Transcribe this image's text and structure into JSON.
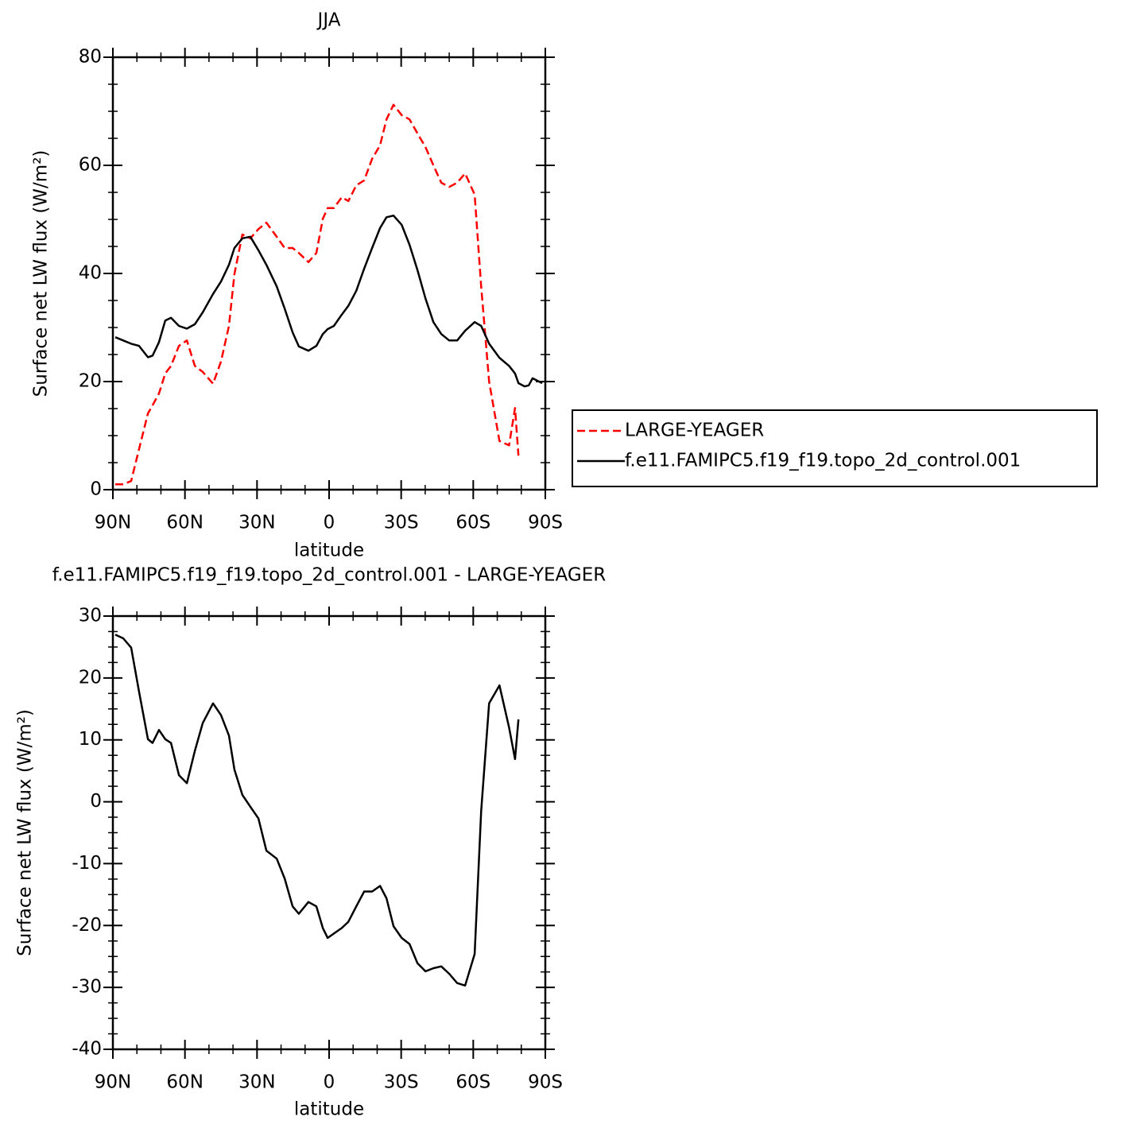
{
  "chart_data": [
    {
      "type": "line",
      "title": "JJA",
      "xlabel": "latitude",
      "ylabel": "Surface net LW flux (W/m²)",
      "x": [
        89.0,
        85.7,
        82.4,
        79.1,
        75.4,
        73.5,
        70.8,
        68.2,
        65.8,
        62.5,
        59.2,
        55.9,
        52.6,
        48.3,
        45.0,
        41.7,
        39.4,
        36.1,
        32.8,
        29.4,
        26.1,
        21.8,
        18.5,
        15.2,
        12.6,
        8.6,
        5.3,
        2.6,
        0.6,
        -2.0,
        -5.3,
        -8.0,
        -11.3,
        -14.6,
        -17.9,
        -21.2,
        -23.9,
        -26.8,
        -30.2,
        -33.5,
        -36.8,
        -40.1,
        -43.4,
        -46.7,
        -50.0,
        -53.3,
        -56.6,
        -60.6,
        -63.3,
        -66.6,
        -70.9,
        -74.9,
        -77.4,
        -78.8,
        -81.4,
        -83.1,
        -84.7,
        -88.7
      ],
      "series": [
        {
          "name": "LARGE-YEAGER",
          "color": "#ff0000",
          "dashed": true,
          "values": [
            1.0,
            1.0,
            1.6,
            7.5,
            14.1,
            15.6,
            17.8,
            21.5,
            22.9,
            26.6,
            27.6,
            22.9,
            21.8,
            19.6,
            23.7,
            30.3,
            39.9,
            47.2,
            46.5,
            48.2,
            49.4,
            46.8,
            44.7,
            44.7,
            43.8,
            42.1,
            43.8,
            50.1,
            52.1,
            52.1,
            54.1,
            53.4,
            56.3,
            57.2,
            61.2,
            63.7,
            68.5,
            71.2,
            69.3,
            68.5,
            65.9,
            63.4,
            60.0,
            56.8,
            56.0,
            56.8,
            58.5,
            54.6,
            37.6,
            20.0,
            9.0,
            8.2,
            15.1,
            6.3,
            null,
            null,
            null,
            null
          ]
        },
        {
          "name": "f.e11.FAMIPC5.f19_f19.topo_2d_control.001",
          "color": "#000000",
          "dashed": false,
          "values": [
            28.2,
            27.6,
            27.0,
            26.6,
            24.5,
            24.8,
            27.3,
            31.3,
            31.8,
            30.3,
            29.8,
            30.6,
            32.8,
            36.2,
            38.5,
            41.6,
            44.7,
            46.5,
            46.8,
            44.3,
            41.6,
            37.6,
            33.5,
            29.1,
            26.5,
            25.7,
            26.6,
            28.8,
            29.7,
            30.3,
            32.4,
            34.0,
            36.8,
            40.9,
            44.7,
            48.4,
            50.4,
            50.7,
            49.0,
            45.3,
            40.6,
            35.4,
            31.0,
            28.8,
            27.6,
            27.6,
            29.4,
            31.0,
            30.3,
            27.0,
            24.4,
            22.9,
            21.5,
            19.7,
            19.1,
            19.3,
            20.6,
            19.7
          ]
        }
      ],
      "xlim": [
        90,
        -90
      ],
      "xticks": [
        {
          "value": 90,
          "label": "90N"
        },
        {
          "value": 60,
          "label": "60N"
        },
        {
          "value": 30,
          "label": "30N"
        },
        0,
        {
          "value": -30,
          "label": "30S"
        },
        {
          "value": -60,
          "label": "60S"
        },
        {
          "value": -90,
          "label": "90S"
        }
      ],
      "ylim": [
        0,
        80
      ],
      "yticks": [
        0,
        20,
        40,
        60,
        80
      ],
      "legend": "right"
    },
    {
      "type": "line",
      "title": "f.e11.FAMIPC5.f19_f19.topo_2d_control.001 - LARGE-YEAGER",
      "xlabel": "latitude",
      "ylabel": "Surface net LW flux (W/m²)",
      "x": [
        89.0,
        85.7,
        82.4,
        79.1,
        75.4,
        73.5,
        70.8,
        68.2,
        65.8,
        62.5,
        59.2,
        55.9,
        52.6,
        48.3,
        45.0,
        41.7,
        39.4,
        36.1,
        32.8,
        29.4,
        26.1,
        21.8,
        18.5,
        15.2,
        12.6,
        8.6,
        5.3,
        2.6,
        0.6,
        -2.0,
        -5.3,
        -8.0,
        -11.3,
        -14.6,
        -17.9,
        -21.2,
        -23.9,
        -26.8,
        -30.2,
        -33.5,
        -36.8,
        -40.1,
        -43.4,
        -46.7,
        -50.0,
        -53.3,
        -56.6,
        -60.6,
        -63.3,
        -66.6,
        -70.9,
        -74.9,
        -77.4,
        -78.8
      ],
      "series": [
        {
          "color": "#000000",
          "dashed": false,
          "values": [
            27.0,
            26.4,
            24.9,
            17.8,
            10.1,
            9.5,
            11.6,
            10.1,
            9.5,
            4.3,
            3.0,
            8.2,
            12.7,
            15.9,
            14.0,
            10.7,
            5.2,
            1.1,
            -0.8,
            -2.7,
            -7.9,
            -9.2,
            -12.4,
            -16.9,
            -18.1,
            -16.2,
            -16.9,
            -20.4,
            -22.0,
            -21.3,
            -20.4,
            -19.4,
            -16.9,
            -14.5,
            -14.5,
            -13.6,
            -15.6,
            -20.1,
            -22.0,
            -23.0,
            -26.1,
            -27.4,
            -26.9,
            -26.6,
            -27.8,
            -29.3,
            -29.7,
            -24.6,
            -1.5,
            15.9,
            18.8,
            12.0,
            6.9,
            13.3
          ]
        }
      ],
      "xlim": [
        90,
        -90
      ],
      "xticks": [
        {
          "value": 90,
          "label": "90N"
        },
        {
          "value": 60,
          "label": "60N"
        },
        {
          "value": 30,
          "label": "30N"
        },
        0,
        {
          "value": -30,
          "label": "30S"
        },
        {
          "value": -60,
          "label": "60S"
        },
        {
          "value": -90,
          "label": "90S"
        }
      ],
      "ylim": [
        -40,
        30
      ],
      "yticks": [
        -40,
        -30,
        -20,
        -10,
        0,
        10,
        20,
        30
      ]
    }
  ]
}
